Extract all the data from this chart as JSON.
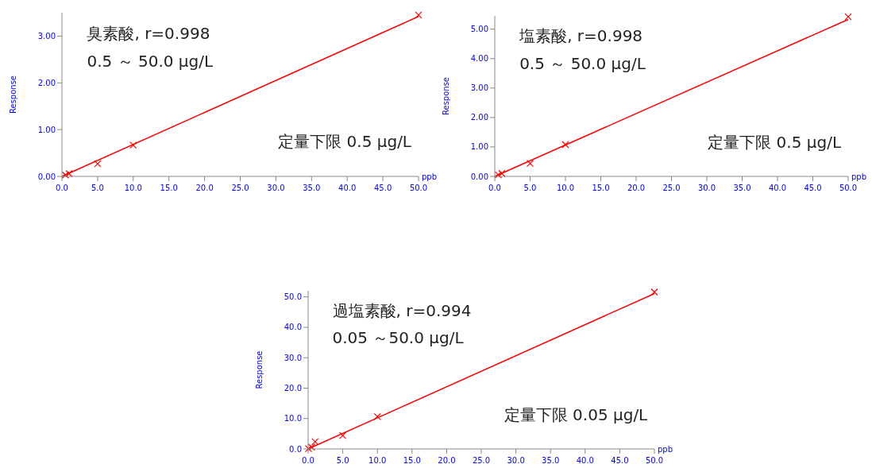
{
  "chart_data": [
    {
      "type": "scatter",
      "xlabel": "ppb",
      "ylabel": "Response",
      "xlim": [
        0,
        50
      ],
      "ylim": [
        0,
        3.5
      ],
      "xticks": [
        {
          "value": 0,
          "label": "0.0"
        },
        {
          "value": 5,
          "label": "5.0"
        },
        {
          "value": 10,
          "label": "10.0"
        },
        {
          "value": 15,
          "label": "15.0"
        },
        {
          "value": 20,
          "label": "20.0"
        },
        {
          "value": 25,
          "label": "25.0"
        },
        {
          "value": 30,
          "label": "30.0"
        },
        {
          "value": 35,
          "label": "35.0"
        },
        {
          "value": 40,
          "label": "40.0"
        },
        {
          "value": 45,
          "label": "45.0"
        },
        {
          "value": 50,
          "label": "50.0"
        }
      ],
      "yticks": [
        {
          "value": 0,
          "label": "0.00"
        },
        {
          "value": 1,
          "label": "1.00"
        },
        {
          "value": 2,
          "label": "2.00"
        },
        {
          "value": 3,
          "label": "3.00"
        }
      ],
      "series": [
        {
          "marker": "cross",
          "color": "#ff0000",
          "x": [
            0.5,
            1,
            5,
            10,
            50
          ],
          "values": [
            0.03,
            0.06,
            0.27,
            0.67,
            3.45
          ]
        },
        {
          "type": "line",
          "color": "#ff0000",
          "x": [
            0,
            50
          ],
          "values": [
            0,
            3.42
          ]
        }
      ],
      "annotations": [
        "臭素酸, r=0.998",
        "0.5 ～ 50.0 μg/L",
        "定量下限 0.5 μg/L"
      ]
    },
    {
      "type": "scatter",
      "xlabel": "ppb",
      "ylabel": "Response",
      "xlim": [
        0,
        50
      ],
      "ylim": [
        0,
        5.45
      ],
      "xticks": [
        {
          "value": 0,
          "label": "0.0"
        },
        {
          "value": 5,
          "label": "5.0"
        },
        {
          "value": 10,
          "label": "10.0"
        },
        {
          "value": 15,
          "label": "15.0"
        },
        {
          "value": 20,
          "label": "20.0"
        },
        {
          "value": 25,
          "label": "25.0"
        },
        {
          "value": 30,
          "label": "30.0"
        },
        {
          "value": 35,
          "label": "35.0"
        },
        {
          "value": 40,
          "label": "40.0"
        },
        {
          "value": 45,
          "label": "45.0"
        },
        {
          "value": 50,
          "label": "50.0"
        }
      ],
      "yticks": [
        {
          "value": 0,
          "label": "0.00"
        },
        {
          "value": 1,
          "label": "1.00"
        },
        {
          "value": 2,
          "label": "2.00"
        },
        {
          "value": 3,
          "label": "3.00"
        },
        {
          "value": 4,
          "label": "4.00"
        },
        {
          "value": 5,
          "label": "5.00"
        }
      ],
      "series": [
        {
          "marker": "cross",
          "color": "#ff0000",
          "x": [
            0.5,
            1,
            5,
            10,
            50
          ],
          "values": [
            0.05,
            0.1,
            0.44,
            1.08,
            5.42
          ]
        },
        {
          "type": "line",
          "color": "#ff0000",
          "x": [
            0,
            50
          ],
          "values": [
            0,
            5.33
          ]
        }
      ],
      "annotations": [
        "塩素酸, r=0.998",
        "0.5 ～ 50.0 μg/L",
        "定量下限 0.5 μg/L"
      ]
    },
    {
      "type": "scatter",
      "xlabel": "ppb",
      "ylabel": "Response",
      "xlim": [
        0,
        50
      ],
      "ylim": [
        0,
        52
      ],
      "xticks": [
        {
          "value": 0,
          "label": "0.0"
        },
        {
          "value": 5,
          "label": "5.0"
        },
        {
          "value": 10,
          "label": "10.0"
        },
        {
          "value": 15,
          "label": "15.0"
        },
        {
          "value": 20,
          "label": "20.0"
        },
        {
          "value": 25,
          "label": "25.0"
        },
        {
          "value": 30,
          "label": "30.0"
        },
        {
          "value": 35,
          "label": "35.0"
        },
        {
          "value": 40,
          "label": "40.0"
        },
        {
          "value": 45,
          "label": "45.0"
        },
        {
          "value": 50,
          "label": "50.0"
        }
      ],
      "yticks": [
        {
          "value": 0,
          "label": "0.0"
        },
        {
          "value": 10,
          "label": "10.0"
        },
        {
          "value": 20,
          "label": "20.0"
        },
        {
          "value": 30,
          "label": "30.0"
        },
        {
          "value": 40,
          "label": "40.0"
        },
        {
          "value": 50,
          "label": "50.0"
        }
      ],
      "series": [
        {
          "marker": "cross",
          "color": "#ff0000",
          "x": [
            0.05,
            0.5,
            1,
            5,
            10,
            50
          ],
          "values": [
            0.1,
            0.6,
            2.4,
            4.4,
            10.6,
            51.6
          ]
        },
        {
          "type": "line",
          "color": "#ff0000",
          "x": [
            0,
            50
          ],
          "values": [
            0,
            51.1
          ]
        }
      ],
      "annotations": [
        "過塩素酸, r=0.994",
        "0.05 ～50.0 μg/L",
        "定量下限 0.05 μg/L"
      ]
    }
  ]
}
